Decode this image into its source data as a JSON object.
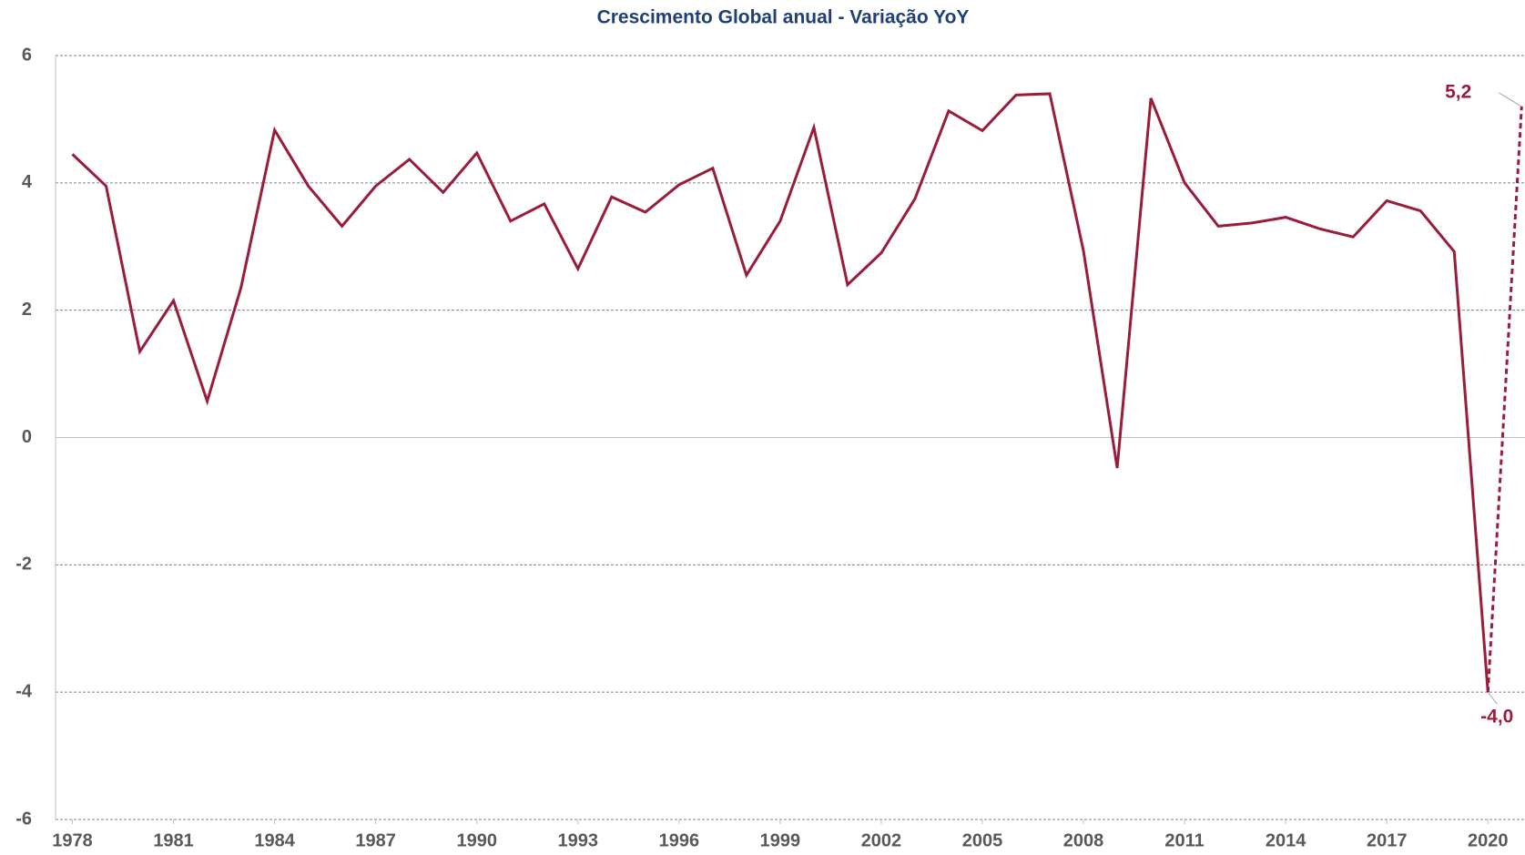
{
  "chart_data": {
    "type": "line",
    "title": "Crescimento Global anual  - Variação YoY",
    "x": [
      1978,
      1979,
      1980,
      1981,
      1982,
      1983,
      1984,
      1985,
      1986,
      1987,
      1988,
      1989,
      1990,
      1991,
      1992,
      1993,
      1994,
      1995,
      1996,
      1997,
      1998,
      1999,
      2000,
      2001,
      2002,
      2003,
      2004,
      2005,
      2006,
      2007,
      2008,
      2009,
      2010,
      2011,
      2012,
      2013,
      2014,
      2015,
      2016,
      2017,
      2018,
      2019,
      2020,
      2021
    ],
    "series": [
      {
        "color": "#9b1c3a",
        "dashed": false,
        "values": [
          4.45,
          3.95,
          1.35,
          2.15,
          0.57,
          2.35,
          4.83,
          3.95,
          3.32,
          3.95,
          4.37,
          3.85,
          4.47,
          3.4,
          3.67,
          2.65,
          3.78,
          3.54,
          3.97,
          4.23,
          2.55,
          3.4,
          4.87,
          2.4,
          2.9,
          3.75,
          5.13,
          4.82,
          5.38,
          5.4,
          2.93,
          -0.48,
          5.33,
          4.0,
          3.32,
          3.37,
          3.46,
          3.28,
          3.15,
          3.72,
          3.56,
          2.92,
          -4.0,
          null
        ],
        "value_labels": [
          null,
          null,
          null,
          null,
          null,
          null,
          null,
          null,
          null,
          null,
          null,
          null,
          null,
          null,
          null,
          null,
          null,
          null,
          null,
          null,
          null,
          null,
          null,
          null,
          null,
          null,
          null,
          null,
          null,
          null,
          null,
          null,
          null,
          null,
          null,
          null,
          null,
          null,
          null,
          null,
          null,
          null,
          "-4,0",
          null
        ]
      },
      {
        "color": "#9b1c3a",
        "dashed": true,
        "values": [
          null,
          null,
          null,
          null,
          null,
          null,
          null,
          null,
          null,
          null,
          null,
          null,
          null,
          null,
          null,
          null,
          null,
          null,
          null,
          null,
          null,
          null,
          null,
          null,
          null,
          null,
          null,
          null,
          null,
          null,
          null,
          null,
          null,
          null,
          null,
          null,
          null,
          null,
          null,
          null,
          null,
          null,
          -4.0,
          5.2
        ],
        "value_labels": [
          null,
          null,
          null,
          null,
          null,
          null,
          null,
          null,
          null,
          null,
          null,
          null,
          null,
          null,
          null,
          null,
          null,
          null,
          null,
          null,
          null,
          null,
          null,
          null,
          null,
          null,
          null,
          null,
          null,
          null,
          null,
          null,
          null,
          null,
          null,
          null,
          null,
          null,
          null,
          null,
          null,
          null,
          null,
          "5,2"
        ]
      }
    ],
    "xlim": [
      1977.5,
      2021.1
    ],
    "xticks": [
      1978,
      1981,
      1984,
      1987,
      1990,
      1993,
      1996,
      1999,
      2002,
      2005,
      2008,
      2011,
      2014,
      2017,
      2020
    ],
    "ylim": [
      -6,
      6
    ],
    "yticks": [
      -6,
      -4,
      -2,
      0,
      2,
      4,
      6
    ],
    "grid": true
  }
}
